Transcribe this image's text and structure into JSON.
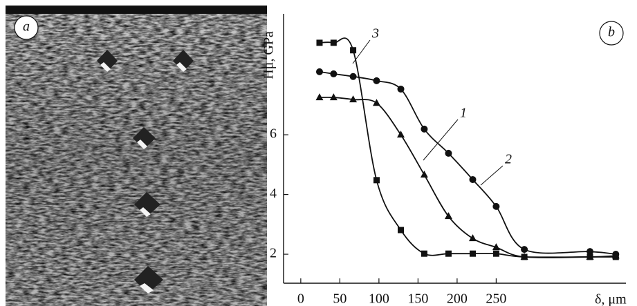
{
  "panel_labels": [
    "a",
    "b"
  ],
  "chart_data": {
    "type": "line",
    "y_label": "Hμ, GPa",
    "x_label": "δ, μm",
    "x": [
      24,
      42,
      67,
      97,
      128,
      158,
      189,
      220,
      250,
      286,
      370,
      403
    ],
    "series": [
      {
        "name": "1",
        "marker": "triangle",
        "color": "#111111",
        "values": [
          7.25,
          7.25,
          7.18,
          7.06,
          6.0,
          4.66,
          3.27,
          2.53,
          2.23,
          1.91,
          1.91,
          1.95
        ]
      },
      {
        "name": "2",
        "marker": "circle",
        "color": "#111111",
        "values": [
          8.11,
          8.04,
          7.95,
          7.81,
          7.53,
          6.19,
          5.38,
          4.5,
          3.6,
          2.16,
          2.09,
          2.0
        ]
      },
      {
        "name": "3",
        "marker": "square",
        "color": "#111111",
        "values": [
          9.08,
          9.08,
          8.83,
          4.48,
          2.81,
          2.02,
          2.02,
          2.02,
          2.02,
          1.91,
          1.91,
          1.91
        ]
      }
    ],
    "xlim": [
      -22,
      416
    ],
    "ylim": [
      1.03,
      10.05
    ],
    "xticks": [
      0,
      50,
      100,
      150,
      200,
      250
    ],
    "yticks": [
      2,
      4,
      6
    ]
  }
}
